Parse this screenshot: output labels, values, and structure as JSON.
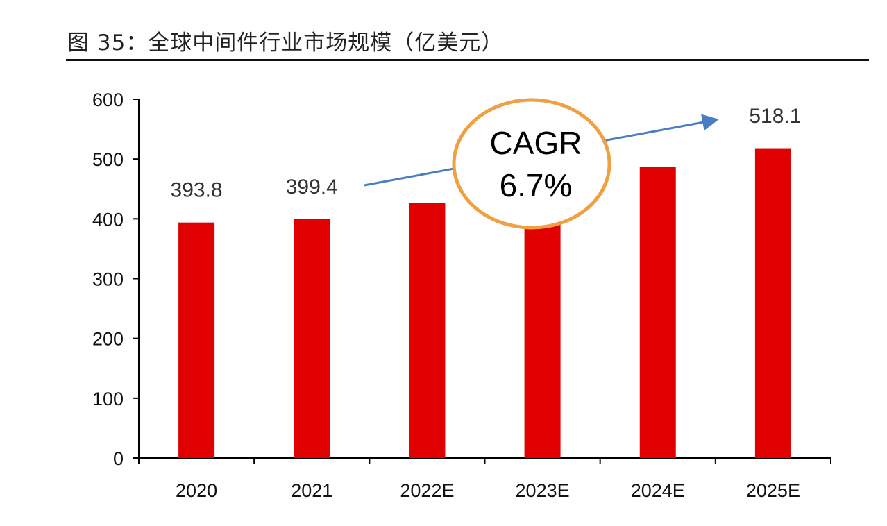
{
  "title": "图 35：全球中间件行业市场规模（亿美元）",
  "chart_data": {
    "type": "bar",
    "categories": [
      "2020",
      "2021",
      "2022E",
      "2023E",
      "2024E",
      "2025E"
    ],
    "values": [
      393.8,
      399.4,
      427,
      456,
      487,
      518.1
    ],
    "data_labels": [
      "393.8",
      "399.4",
      "",
      "",
      "",
      "518.1"
    ],
    "ylim": [
      0,
      600
    ],
    "yticks": [
      0,
      100,
      200,
      300,
      400,
      500,
      600
    ],
    "grid": false,
    "bar_color": "#E00000",
    "annotation": {
      "line1": "CAGR",
      "line2": "6.7%",
      "ellipse_color": "#F0A040",
      "arrow_color": "#4A7EC2"
    }
  }
}
